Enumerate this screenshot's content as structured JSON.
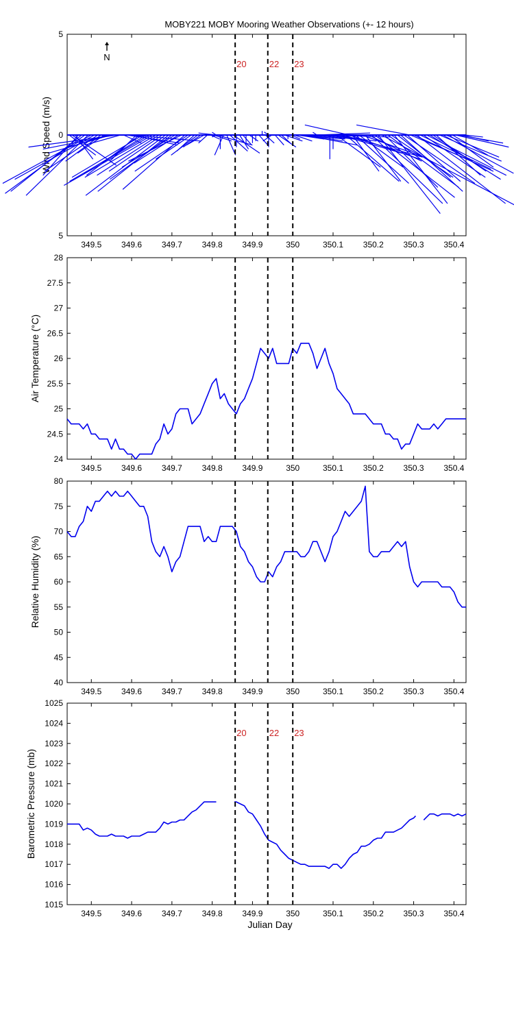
{
  "figure_title": "MOBY221 MOBY Mooring Weather Observations (+- 12 hours)",
  "north_label": "N",
  "colors": {
    "series": "#0000ee",
    "annotation": "#cc2222",
    "axis": "#000000"
  },
  "vertical_markers": [
    {
      "x": 349.857,
      "label": "20"
    },
    {
      "x": 349.938,
      "label": "22"
    },
    {
      "x": 350.0,
      "label": "23"
    }
  ],
  "chart_data": [
    {
      "type": "vector",
      "title": "",
      "xlabel": "",
      "ylabel": "Wind Speed (m/s)",
      "xlim": [
        349.44,
        350.43
      ],
      "ylim": [
        -5,
        5
      ],
      "yticks": [
        -5,
        0,
        5
      ],
      "ytick_labels": [
        "5",
        "0",
        "5"
      ],
      "xticks": [
        349.5,
        349.6,
        349.7,
        349.8,
        349.9,
        350,
        350.1,
        350.2,
        350.3,
        350.4
      ],
      "marker_labels_shown": true,
      "vectors": {
        "x": [
          349.445,
          349.452,
          349.46,
          349.468,
          349.476,
          349.484,
          349.492,
          349.5,
          349.508,
          349.516,
          349.524,
          349.532,
          349.54,
          349.548,
          349.556,
          349.564,
          349.572,
          349.58,
          349.588,
          349.596,
          349.604,
          349.612,
          349.62,
          349.628,
          349.636,
          349.644,
          349.652,
          349.66,
          349.668,
          349.676,
          349.684,
          349.692,
          349.7,
          349.708,
          349.716,
          349.724,
          349.732,
          349.74,
          349.748,
          349.756,
          349.764,
          349.772,
          349.78,
          349.788,
          349.796,
          349.804,
          349.812,
          349.82,
          349.828,
          349.836,
          349.844,
          349.852,
          349.86,
          349.868,
          349.876,
          349.884,
          349.892,
          349.9,
          349.908,
          349.916,
          349.924,
          349.932,
          349.94,
          349.948,
          349.956,
          349.964,
          349.972,
          349.98,
          349.988,
          349.996,
          350.004,
          350.012,
          350.02,
          350.028,
          350.036,
          350.044,
          350.052,
          350.06,
          350.068,
          350.076,
          350.084,
          350.092,
          350.1,
          350.108,
          350.116,
          350.124,
          350.132,
          350.14,
          350.148,
          350.156,
          350.164,
          350.172,
          350.18,
          350.188,
          350.196,
          350.204,
          350.212,
          350.22,
          350.228,
          350.236,
          350.244,
          350.252,
          350.26,
          350.268,
          350.276,
          350.284,
          350.292,
          350.3,
          350.308,
          350.316,
          350.324,
          350.332,
          350.34,
          350.348,
          350.356,
          350.364,
          350.372,
          350.38,
          350.388,
          350.396,
          350.404,
          350.412,
          350.42,
          350.428
        ],
        "u": [
          0.3,
          0.5,
          0.2,
          -0.4,
          -0.8,
          -0.9,
          -0.7,
          -1.0,
          -0.9,
          -0.6,
          -0.4,
          -0.3,
          -0.5,
          -0.7,
          -0.8,
          -1.0,
          -0.4,
          0.2,
          0.6,
          0.8,
          0.5,
          -0.3,
          -0.6,
          -0.8,
          -0.7,
          -0.9,
          -1.0,
          -0.8,
          -0.7,
          -0.6,
          -0.9,
          -0.8,
          -0.7,
          -0.6,
          -0.5,
          -0.6,
          -0.7,
          -0.6,
          -0.4,
          -0.2,
          -0.3,
          -0.2,
          -0.2,
          -0.1,
          0.1,
          0.2,
          0.4,
          0.0,
          -0.1,
          0.1,
          0.2,
          0.3,
          0.0,
          0.1,
          0.1,
          0.0,
          0.1,
          0.0,
          0.0,
          0.1,
          0.0,
          0.1,
          0.0,
          -0.1,
          0.1,
          0.2,
          0.1,
          0.2,
          0.0,
          0.1,
          0.2,
          0.3,
          0.5,
          0.6,
          0.4,
          0.5,
          0.4,
          0.6,
          0.8,
          0.6,
          0.4,
          0.0,
          0.0,
          0.5,
          0.7,
          0.9,
          0.6,
          0.8,
          0.3,
          0.6,
          0.5,
          0.7,
          0.4,
          0.6,
          0.8,
          0.9,
          0.7,
          1.6,
          0.6,
          0.8,
          0.7,
          0.6,
          0.6,
          0.7,
          0.8,
          0.6,
          0.7,
          0.9,
          1.0,
          0.8,
          0.7,
          0.9,
          0.8,
          0.6,
          0.5,
          0.7,
          0.8,
          0.6,
          0.5,
          0.4,
          0.6,
          0.5,
          0.3,
          0.2
        ],
        "v": [
          -1.0,
          -1.5,
          -1.2,
          -2.0,
          -2.8,
          -2.9,
          -3.0,
          -2.4,
          -2.2,
          -1.8,
          -1.3,
          -0.9,
          -0.7,
          -0.9,
          -0.7,
          -0.6,
          -0.5,
          -0.4,
          -0.4,
          -0.3,
          -0.5,
          -1.3,
          -2.0,
          -2.1,
          -1.9,
          -2.3,
          -2.5,
          -2.1,
          -2.0,
          -1.8,
          -3.0,
          -2.8,
          -2.2,
          -1.6,
          -1.4,
          -1.3,
          -2.7,
          -1.8,
          -1.2,
          -0.8,
          -1.0,
          -0.6,
          -0.5,
          -0.4,
          -0.2,
          -0.3,
          -0.5,
          -0.7,
          -1.0,
          -1.0,
          -0.8,
          -0.9,
          -0.6,
          -0.7,
          -0.5,
          -0.4,
          -0.3,
          -0.4,
          -0.3,
          -0.5,
          0.2,
          -0.4,
          -0.6,
          -0.3,
          -0.5,
          -0.6,
          -0.4,
          -0.3,
          -0.2,
          -0.2,
          -0.3,
          -0.2,
          -0.2,
          -0.5,
          -0.3,
          -0.2,
          -0.1,
          0.1,
          -0.1,
          -0.3,
          -0.2,
          -1.2,
          -0.7,
          -1.6,
          -0.9,
          -1.1,
          -2.3,
          -1.2,
          -1.8,
          -2.4,
          -1.6,
          -1.1,
          -2.3,
          -1.3,
          -3.4,
          -3.1,
          -3.9,
          -3.7,
          -2.6,
          -2.6,
          -2.1,
          -3.4,
          -2.1,
          -2.8,
          -2.4,
          -2.3,
          -1.3,
          -1.8,
          -3.4,
          -1.7,
          -2.1,
          -2.0,
          -2.2,
          -1.8,
          -2.0,
          -1.3,
          -1.9,
          -1.1,
          -1.6,
          -1.0,
          -0.6,
          -0.4,
          -0.3,
          -0.1
        ],
        "special": [
          {
            "x": 350.14,
            "u": -0.5,
            "v": 0.5
          },
          {
            "x": 350.29,
            "u": -0.6,
            "v": 0.5
          },
          {
            "x": 349.81,
            "u": -0.2,
            "v": 0.1
          },
          {
            "x": 349.94,
            "u": -0.05,
            "v": 0.15
          }
        ]
      }
    },
    {
      "type": "line",
      "title": "",
      "xlabel": "",
      "ylabel": "Air Temperature (°C)",
      "xlim": [
        349.44,
        350.43
      ],
      "ylim": [
        24,
        28
      ],
      "yticks": [
        24,
        24.5,
        25,
        25.5,
        26,
        26.5,
        27,
        27.5,
        28
      ],
      "ytick_labels": [
        "24",
        "24.5",
        "25",
        "25.5",
        "26",
        "26.5",
        "27",
        "27.5",
        "28"
      ],
      "xticks": [
        349.5,
        349.6,
        349.7,
        349.8,
        349.9,
        350,
        350.1,
        350.2,
        350.3,
        350.4
      ],
      "marker_labels_shown": false,
      "x": [
        349.44,
        349.45,
        349.46,
        349.47,
        349.48,
        349.49,
        349.5,
        349.51,
        349.52,
        349.53,
        349.54,
        349.55,
        349.56,
        349.57,
        349.58,
        349.59,
        349.6,
        349.61,
        349.62,
        349.63,
        349.64,
        349.65,
        349.66,
        349.67,
        349.68,
        349.69,
        349.7,
        349.71,
        349.72,
        349.73,
        349.74,
        349.75,
        349.76,
        349.77,
        349.78,
        349.79,
        349.8,
        349.81,
        349.82,
        349.83,
        349.84,
        349.85,
        349.86,
        349.87,
        349.88,
        349.89,
        349.9,
        349.91,
        349.92,
        349.93,
        349.94,
        349.95,
        349.96,
        349.97,
        349.98,
        349.99,
        350.0,
        350.01,
        350.02,
        350.03,
        350.04,
        350.05,
        350.06,
        350.07,
        350.08,
        350.09,
        350.1,
        350.11,
        350.12,
        350.13,
        350.14,
        350.15,
        350.16,
        350.17,
        350.18,
        350.19,
        350.2,
        350.21,
        350.22,
        350.23,
        350.24,
        350.25,
        350.26,
        350.27,
        350.28,
        350.29,
        350.3,
        350.31,
        350.32,
        350.33,
        350.34,
        350.35,
        350.36,
        350.37,
        350.38,
        350.39,
        350.4,
        350.41,
        350.42,
        350.43
      ],
      "y": [
        24.8,
        24.7,
        24.7,
        24.7,
        24.6,
        24.7,
        24.5,
        24.5,
        24.4,
        24.4,
        24.4,
        24.2,
        24.4,
        24.2,
        24.2,
        24.1,
        24.1,
        24.0,
        24.1,
        24.1,
        24.1,
        24.1,
        24.3,
        24.4,
        24.7,
        24.5,
        24.6,
        24.9,
        25.0,
        25.0,
        25.0,
        24.7,
        24.8,
        24.9,
        25.1,
        25.3,
        25.5,
        25.6,
        25.2,
        25.3,
        25.1,
        25.0,
        24.9,
        25.1,
        25.2,
        25.4,
        25.6,
        25.9,
        26.2,
        26.1,
        26.0,
        26.2,
        25.9,
        25.9,
        25.9,
        25.9,
        26.2,
        26.1,
        26.3,
        26.3,
        26.3,
        26.1,
        25.8,
        26.0,
        26.2,
        25.9,
        25.7,
        25.4,
        25.3,
        25.2,
        25.1,
        24.9,
        24.9,
        24.9,
        24.9,
        24.8,
        24.7,
        24.7,
        24.7,
        24.5,
        24.5,
        24.4,
        24.4,
        24.2,
        24.3,
        24.3,
        24.5,
        24.7,
        24.6,
        24.6,
        24.6,
        24.7,
        24.6,
        24.7,
        24.8,
        24.8,
        24.8,
        24.8,
        24.8,
        24.8
      ]
    },
    {
      "type": "line",
      "title": "",
      "xlabel": "",
      "ylabel": "Relative Humidity (%)",
      "xlim": [
        349.44,
        350.43
      ],
      "ylim": [
        40,
        80
      ],
      "yticks": [
        40,
        45,
        50,
        55,
        60,
        65,
        70,
        75,
        80
      ],
      "ytick_labels": [
        "40",
        "45",
        "50",
        "55",
        "60",
        "65",
        "70",
        "75",
        "80"
      ],
      "xticks": [
        349.5,
        349.6,
        349.7,
        349.8,
        349.9,
        350,
        350.1,
        350.2,
        350.3,
        350.4
      ],
      "marker_labels_shown": false,
      "x": [
        349.44,
        349.45,
        349.46,
        349.47,
        349.48,
        349.49,
        349.5,
        349.51,
        349.52,
        349.53,
        349.54,
        349.55,
        349.56,
        349.57,
        349.58,
        349.59,
        349.6,
        349.61,
        349.62,
        349.63,
        349.64,
        349.65,
        349.66,
        349.67,
        349.68,
        349.69,
        349.7,
        349.71,
        349.72,
        349.73,
        349.74,
        349.75,
        349.76,
        349.77,
        349.78,
        349.79,
        349.8,
        349.81,
        349.82,
        349.83,
        349.84,
        349.85,
        349.86,
        349.87,
        349.88,
        349.89,
        349.9,
        349.91,
        349.92,
        349.93,
        349.94,
        349.95,
        349.96,
        349.97,
        349.98,
        349.99,
        350.0,
        350.01,
        350.02,
        350.03,
        350.04,
        350.05,
        350.06,
        350.07,
        350.08,
        350.09,
        350.1,
        350.11,
        350.12,
        350.13,
        350.14,
        350.15,
        350.16,
        350.17,
        350.18,
        350.19,
        350.2,
        350.21,
        350.22,
        350.23,
        350.24,
        350.25,
        350.26,
        350.27,
        350.28,
        350.29,
        350.3,
        350.31,
        350.32,
        350.33,
        350.34,
        350.35,
        350.36,
        350.37,
        350.38,
        350.39,
        350.4,
        350.41,
        350.42,
        350.43
      ],
      "y": [
        70,
        69,
        69,
        71,
        72,
        75,
        74,
        76,
        76,
        77,
        78,
        77,
        78,
        77,
        77,
        78,
        77,
        76,
        75,
        75,
        73,
        68,
        66,
        65,
        67,
        65,
        62,
        64,
        65,
        68,
        71,
        71,
        71,
        71,
        68,
        69,
        68,
        68,
        71,
        71,
        71,
        71,
        70,
        67,
        66,
        64,
        63,
        61,
        60,
        60,
        62,
        61,
        63,
        64,
        66,
        66,
        66,
        66,
        65,
        65,
        66,
        68,
        68,
        66,
        64,
        66,
        69,
        70,
        72,
        74,
        73,
        74,
        75,
        76,
        79,
        66,
        65,
        65,
        66,
        66,
        66,
        67,
        68,
        67,
        68,
        63,
        60,
        59,
        60,
        60,
        60,
        60,
        60,
        59,
        59,
        59,
        58,
        56,
        55,
        55
      ]
    },
    {
      "type": "line",
      "title": "",
      "xlabel": "Julian Day",
      "ylabel": "Barometric Pressure (mb)",
      "xlim": [
        349.44,
        350.43
      ],
      "ylim": [
        1015,
        1025
      ],
      "yticks": [
        1015,
        1016,
        1017,
        1018,
        1019,
        1020,
        1021,
        1022,
        1023,
        1024,
        1025
      ],
      "ytick_labels": [
        "1015",
        "1016",
        "1017",
        "1018",
        "1019",
        "1020",
        "1021",
        "1022",
        "1023",
        "1024",
        "1025"
      ],
      "xticks": [
        349.5,
        349.6,
        349.7,
        349.8,
        349.9,
        350,
        350.1,
        350.2,
        350.3,
        350.4
      ],
      "marker_labels_shown": true,
      "segments": [
        {
          "x": [
            349.44,
            349.45,
            349.46,
            349.47,
            349.48,
            349.49,
            349.5,
            349.51,
            349.52,
            349.53,
            349.54,
            349.55,
            349.56,
            349.57,
            349.58,
            349.59,
            349.6,
            349.61,
            349.62,
            349.63,
            349.64,
            349.65,
            349.66,
            349.67,
            349.68,
            349.69,
            349.7,
            349.71,
            349.72,
            349.73,
            349.74,
            349.75,
            349.76,
            349.77,
            349.78,
            349.79,
            349.8,
            349.81
          ],
          "y": [
            1019.0,
            1019.0,
            1019.0,
            1019.0,
            1018.7,
            1018.8,
            1018.7,
            1018.5,
            1018.4,
            1018.4,
            1018.4,
            1018.5,
            1018.4,
            1018.4,
            1018.4,
            1018.3,
            1018.4,
            1018.4,
            1018.4,
            1018.5,
            1018.6,
            1018.6,
            1018.6,
            1018.8,
            1019.1,
            1019.0,
            1019.1,
            1019.1,
            1019.2,
            1019.2,
            1019.4,
            1019.6,
            1019.7,
            1019.9,
            1020.1,
            1020.1,
            1020.1,
            1020.1
          ]
        },
        {
          "x": [
            349.855,
            349.86,
            349.87,
            349.88,
            349.89,
            349.9,
            349.91,
            349.92,
            349.93,
            349.94,
            349.95,
            349.96,
            349.97,
            349.98,
            349.99,
            350.0,
            350.01,
            350.02,
            350.03,
            350.04,
            350.05,
            350.06,
            350.07,
            350.08,
            350.09,
            350.1,
            350.11,
            350.12,
            350.13,
            350.14,
            350.15,
            350.16,
            350.17,
            350.18,
            350.19,
            350.2,
            350.21,
            350.22,
            350.23,
            350.24,
            350.25,
            350.26,
            350.27,
            350.28,
            350.29,
            350.3,
            350.305
          ],
          "y": [
            1020.1,
            1020.1,
            1020.0,
            1019.9,
            1019.6,
            1019.5,
            1019.2,
            1018.9,
            1018.5,
            1018.2,
            1018.1,
            1018.0,
            1017.7,
            1017.5,
            1017.3,
            1017.2,
            1017.1,
            1017.0,
            1017.0,
            1016.9,
            1016.9,
            1016.9,
            1016.9,
            1016.9,
            1016.8,
            1017.0,
            1017.0,
            1016.8,
            1017.0,
            1017.3,
            1017.5,
            1017.6,
            1017.9,
            1017.9,
            1018.0,
            1018.2,
            1018.3,
            1018.3,
            1018.6,
            1018.6,
            1018.6,
            1018.7,
            1018.8,
            1019.0,
            1019.2,
            1019.3,
            1019.4
          ]
        },
        {
          "x": [
            350.325,
            350.33,
            350.34,
            350.35,
            350.36,
            350.37,
            350.38,
            350.39,
            350.4,
            350.41,
            350.42,
            350.43
          ],
          "y": [
            1019.2,
            1019.3,
            1019.5,
            1019.5,
            1019.4,
            1019.5,
            1019.5,
            1019.5,
            1019.4,
            1019.5,
            1019.4,
            1019.5
          ]
        }
      ]
    }
  ]
}
